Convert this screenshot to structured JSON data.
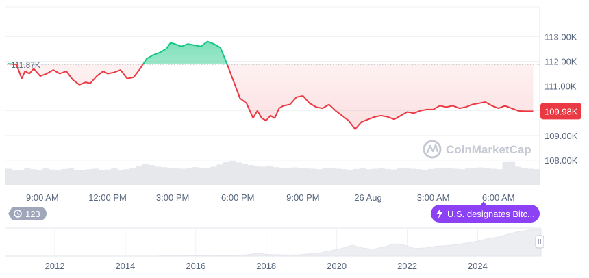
{
  "colors": {
    "up": "#16c784",
    "down": "#ea3943",
    "grid": "#eff2f5",
    "text": "#58667e",
    "volume": "#e6e8ec",
    "badge_gray": "#a1a7bb",
    "badge_purple": "#8c42f4",
    "history_fill": "#eceef2"
  },
  "watermark": {
    "brand": "CoinMarketCap",
    "icon": "coinmarketcap-logo-icon"
  },
  "events": {
    "count_badge": {
      "icon": "history-clock-icon",
      "label": "123"
    },
    "news_badge": {
      "icon": "lightning-icon",
      "label": "U.S. designates Bitc..."
    }
  },
  "overview_axis": {
    "labels": [
      "2012",
      "2014",
      "2016",
      "2018",
      "2020",
      "2022",
      "2024"
    ]
  },
  "handle": {
    "icon": "drag-handle-icon"
  },
  "chart_data": {
    "type": "line",
    "title": "",
    "xlabel": "",
    "ylabel": "",
    "x_tick_labels": [
      "9:00 AM",
      "12:00 PM",
      "3:00 PM",
      "6:00 PM",
      "9:00 PM",
      "26 Aug",
      "3:00 AM",
      "6:00 AM"
    ],
    "x_tick_hours": [
      9,
      12,
      15,
      18,
      21,
      24,
      27,
      30
    ],
    "y_tick_labels": [
      "113.00K",
      "112.00K",
      "111.00K",
      "110.00K",
      "109.00K",
      "108.00K"
    ],
    "y_tick_values": [
      113000,
      112000,
      111000,
      110000,
      109000,
      108000
    ],
    "ylim": [
      107000,
      114200
    ],
    "xlim": [
      7.3,
      31.9
    ],
    "reference_price": {
      "label": "111.87K",
      "value": 111870
    },
    "current_price": {
      "label": "109.98K",
      "value": 109980
    },
    "grid": true,
    "series": [
      {
        "x": [
          7.4,
          7.8,
          8.05,
          8.2,
          8.4,
          8.6,
          8.9,
          9.2,
          9.5,
          9.8,
          10.1,
          10.4,
          10.7,
          11.0,
          11.2,
          11.5,
          11.8,
          12.0,
          12.3,
          12.6,
          12.9,
          13.2,
          13.5,
          13.8,
          14.1,
          14.4,
          14.7,
          14.9,
          15.1,
          15.4,
          15.7,
          16.0,
          16.3,
          16.6,
          16.9,
          17.2,
          17.5,
          17.8,
          18.1,
          18.4,
          18.7,
          18.9,
          19.1,
          19.3,
          19.5,
          19.7,
          19.9,
          20.1,
          20.4,
          20.7,
          21.0,
          21.3,
          21.6,
          21.9,
          22.2,
          22.5,
          22.8,
          23.1,
          23.4,
          23.7,
          24.0,
          24.3,
          24.6,
          24.9,
          25.2,
          25.5,
          25.8,
          26.1,
          26.4,
          26.7,
          27.0,
          27.3,
          27.6,
          27.9,
          28.2,
          28.5,
          28.8,
          29.1,
          29.4,
          29.7,
          30.0,
          30.3,
          30.6,
          30.9,
          31.2,
          31.6
        ],
        "y": [
          111900,
          111870,
          111300,
          111600,
          111500,
          111700,
          111400,
          111500,
          111650,
          111500,
          111600,
          111250,
          111050,
          111150,
          111100,
          111400,
          111600,
          111500,
          111550,
          111650,
          111300,
          111350,
          111700,
          112100,
          112250,
          112350,
          112500,
          112750,
          112700,
          112600,
          112700,
          112650,
          112600,
          112800,
          112700,
          112550,
          111900,
          111200,
          110500,
          110300,
          109700,
          110000,
          109700,
          109600,
          109800,
          109700,
          110100,
          110200,
          110250,
          110550,
          110600,
          110300,
          110150,
          110100,
          110250,
          110000,
          109800,
          109600,
          109250,
          109550,
          109650,
          109750,
          109800,
          109750,
          109650,
          109800,
          109950,
          109900,
          110000,
          110050,
          110050,
          110200,
          110150,
          110200,
          110100,
          110150,
          110250,
          110300,
          110350,
          110200,
          110100,
          110200,
          110100,
          110000,
          109980,
          109980
        ]
      }
    ],
    "volume": [
      0.62,
      0.55,
      0.58,
      0.66,
      0.6,
      0.57,
      0.63,
      0.59,
      0.55,
      0.61,
      0.64,
      0.58,
      0.56,
      0.6,
      0.62,
      0.57,
      0.59,
      0.63,
      0.58,
      0.6,
      0.65,
      0.72,
      0.8,
      0.76,
      0.7,
      0.68,
      0.66,
      0.64,
      0.62,
      0.66,
      0.68,
      0.63,
      0.65,
      0.7,
      0.78,
      0.88,
      0.92,
      0.86,
      0.8,
      0.76,
      0.72,
      0.7,
      0.74,
      0.68,
      0.66,
      0.64,
      0.67,
      0.65,
      0.63,
      0.62,
      0.6,
      0.64,
      0.66,
      0.62,
      0.6,
      0.58,
      0.61,
      0.63,
      0.6,
      0.62,
      0.64,
      0.61,
      0.59,
      0.63,
      0.65,
      0.62,
      0.6,
      0.58,
      0.61,
      0.63,
      0.66,
      0.64,
      0.62,
      0.6,
      0.63,
      0.65,
      0.67,
      0.64,
      0.62,
      0.6,
      0.88,
      0.9,
      0.7,
      0.64,
      0.62,
      0.6
    ],
    "history": {
      "x_start": 2010.6,
      "x_end": 2025.8,
      "axis_years": [
        2012,
        2014,
        2016,
        2018,
        2020,
        2022,
        2024
      ],
      "values": [
        0.0,
        0.0,
        0.0,
        0.0,
        0.0,
        0.0,
        0.0,
        0.0,
        0.0,
        0.0,
        0.0,
        0.0,
        0.0,
        0.0,
        0.0,
        0.01,
        0.01,
        0.01,
        0.02,
        0.01,
        0.01,
        0.02,
        0.03,
        0.05,
        0.1,
        0.06,
        0.05,
        0.04,
        0.05,
        0.08,
        0.12,
        0.2,
        0.28,
        0.4,
        0.3,
        0.25,
        0.33,
        0.45,
        0.4,
        0.28,
        0.3,
        0.36,
        0.38,
        0.42,
        0.48,
        0.55,
        0.64,
        0.7,
        0.82,
        0.9,
        0.96,
        0.98
      ]
    }
  }
}
